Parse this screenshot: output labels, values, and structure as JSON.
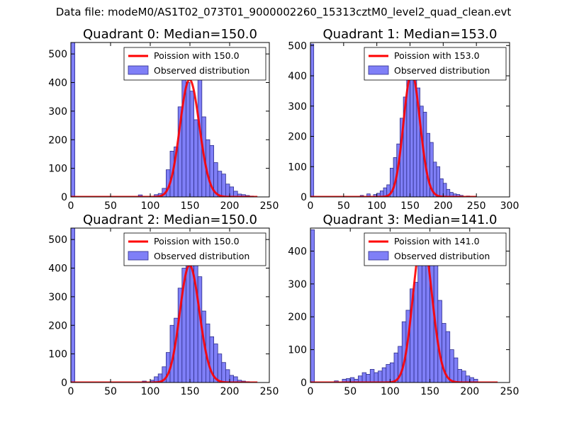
{
  "figure": {
    "suptitle": "Data file: modeM0/AS1T02_073T01_9000002260_15313cztM0_level2_quad_clean.evt"
  },
  "colors": {
    "hist_fill": "#7F7FF7",
    "hist_edge": "#2E2E8C",
    "poisson_line": "#FF0000",
    "background": "#ffffff"
  },
  "chart_data": [
    {
      "type": "histogram+line",
      "title": "Quadrant 0: Median=150.0",
      "xlim": [
        0,
        250
      ],
      "ylim": [
        0,
        540
      ],
      "xticks": [
        0,
        50,
        100,
        150,
        200,
        250
      ],
      "yticks": [
        0,
        100,
        200,
        300,
        400,
        500
      ],
      "bin_width": 5,
      "bins": [
        {
          "x": 0,
          "y": 540
        },
        {
          "x": 85,
          "y": 7
        },
        {
          "x": 105,
          "y": 8
        },
        {
          "x": 110,
          "y": 12
        },
        {
          "x": 115,
          "y": 30
        },
        {
          "x": 120,
          "y": 95
        },
        {
          "x": 125,
          "y": 160
        },
        {
          "x": 130,
          "y": 175
        },
        {
          "x": 135,
          "y": 315
        },
        {
          "x": 140,
          "y": 445
        },
        {
          "x": 145,
          "y": 400
        },
        {
          "x": 150,
          "y": 370
        },
        {
          "x": 155,
          "y": 270
        },
        {
          "x": 160,
          "y": 420
        },
        {
          "x": 165,
          "y": 280
        },
        {
          "x": 170,
          "y": 200
        },
        {
          "x": 175,
          "y": 180
        },
        {
          "x": 180,
          "y": 120
        },
        {
          "x": 185,
          "y": 90
        },
        {
          "x": 190,
          "y": 80
        },
        {
          "x": 195,
          "y": 45
        },
        {
          "x": 200,
          "y": 35
        },
        {
          "x": 205,
          "y": 20
        },
        {
          "x": 210,
          "y": 10
        },
        {
          "x": 215,
          "y": 8
        },
        {
          "x": 220,
          "y": 5
        },
        {
          "x": 225,
          "y": 3
        }
      ],
      "poisson": {
        "lambda": 150.0,
        "peak": 410,
        "x_max": 235
      },
      "legend": {
        "position": "top-right",
        "line_label": "Poission with 150.0",
        "hist_label": "Observed distribution"
      }
    },
    {
      "type": "histogram+line",
      "title": "Quadrant 1: Median=153.0",
      "xlim": [
        0,
        300
      ],
      "ylim": [
        0,
        510
      ],
      "xticks": [
        0,
        50,
        100,
        150,
        200,
        250,
        300
      ],
      "yticks": [
        0,
        100,
        200,
        300,
        400,
        500
      ],
      "bin_width": 5,
      "bins": [
        {
          "x": 0,
          "y": 505
        },
        {
          "x": 75,
          "y": 5
        },
        {
          "x": 85,
          "y": 10
        },
        {
          "x": 95,
          "y": 8
        },
        {
          "x": 100,
          "y": 12
        },
        {
          "x": 105,
          "y": 20
        },
        {
          "x": 110,
          "y": 30
        },
        {
          "x": 115,
          "y": 40
        },
        {
          "x": 120,
          "y": 95
        },
        {
          "x": 125,
          "y": 130
        },
        {
          "x": 130,
          "y": 175
        },
        {
          "x": 135,
          "y": 260
        },
        {
          "x": 140,
          "y": 330
        },
        {
          "x": 145,
          "y": 420
        },
        {
          "x": 150,
          "y": 445
        },
        {
          "x": 155,
          "y": 400
        },
        {
          "x": 160,
          "y": 360
        },
        {
          "x": 165,
          "y": 300
        },
        {
          "x": 170,
          "y": 280
        },
        {
          "x": 175,
          "y": 210
        },
        {
          "x": 180,
          "y": 180
        },
        {
          "x": 185,
          "y": 115
        },
        {
          "x": 190,
          "y": 100
        },
        {
          "x": 195,
          "y": 60
        },
        {
          "x": 200,
          "y": 45
        },
        {
          "x": 205,
          "y": 25
        },
        {
          "x": 210,
          "y": 15
        },
        {
          "x": 215,
          "y": 10
        },
        {
          "x": 220,
          "y": 8
        },
        {
          "x": 225,
          "y": 5
        },
        {
          "x": 235,
          "y": 3
        }
      ],
      "poisson": {
        "lambda": 153.0,
        "peak": 410,
        "x_max": 250
      },
      "legend": {
        "position": "top-right",
        "line_label": "Poission with 153.0",
        "hist_label": "Observed distribution"
      }
    },
    {
      "type": "histogram+line",
      "title": "Quadrant 2: Median=150.0",
      "xlim": [
        0,
        250
      ],
      "ylim": [
        0,
        540
      ],
      "xticks": [
        0,
        50,
        100,
        150,
        200,
        250
      ],
      "yticks": [
        0,
        100,
        200,
        300,
        400,
        500
      ],
      "bin_width": 5,
      "bins": [
        {
          "x": 0,
          "y": 540
        },
        {
          "x": 90,
          "y": 5
        },
        {
          "x": 100,
          "y": 8
        },
        {
          "x": 105,
          "y": 20
        },
        {
          "x": 110,
          "y": 30
        },
        {
          "x": 115,
          "y": 55
        },
        {
          "x": 120,
          "y": 105
        },
        {
          "x": 125,
          "y": 200
        },
        {
          "x": 130,
          "y": 225
        },
        {
          "x": 135,
          "y": 330
        },
        {
          "x": 140,
          "y": 400
        },
        {
          "x": 145,
          "y": 440
        },
        {
          "x": 150,
          "y": 470
        },
        {
          "x": 155,
          "y": 420
        },
        {
          "x": 160,
          "y": 370
        },
        {
          "x": 165,
          "y": 250
        },
        {
          "x": 170,
          "y": 205
        },
        {
          "x": 175,
          "y": 160
        },
        {
          "x": 180,
          "y": 135
        },
        {
          "x": 185,
          "y": 100
        },
        {
          "x": 190,
          "y": 70
        },
        {
          "x": 195,
          "y": 45
        },
        {
          "x": 200,
          "y": 25
        },
        {
          "x": 205,
          "y": 20
        },
        {
          "x": 210,
          "y": 8
        },
        {
          "x": 215,
          "y": 5
        },
        {
          "x": 220,
          "y": 3
        }
      ],
      "poisson": {
        "lambda": 150.0,
        "peak": 410,
        "x_max": 235
      },
      "legend": {
        "position": "top-right",
        "line_label": "Poission with 150.0",
        "hist_label": "Observed distribution"
      }
    },
    {
      "type": "histogram+line",
      "title": "Quadrant 3: Median=141.0",
      "xlim": [
        0,
        250
      ],
      "ylim": [
        0,
        470
      ],
      "xticks": [
        0,
        50,
        100,
        150,
        200,
        250
      ],
      "yticks": [
        0,
        100,
        200,
        300,
        400
      ],
      "bin_width": 5,
      "bins": [
        {
          "x": 0,
          "y": 465
        },
        {
          "x": 30,
          "y": 5
        },
        {
          "x": 40,
          "y": 10
        },
        {
          "x": 45,
          "y": 12
        },
        {
          "x": 50,
          "y": 15
        },
        {
          "x": 55,
          "y": 10
        },
        {
          "x": 60,
          "y": 20
        },
        {
          "x": 65,
          "y": 30
        },
        {
          "x": 70,
          "y": 25
        },
        {
          "x": 75,
          "y": 40
        },
        {
          "x": 80,
          "y": 30
        },
        {
          "x": 85,
          "y": 35
        },
        {
          "x": 90,
          "y": 45
        },
        {
          "x": 95,
          "y": 55
        },
        {
          "x": 100,
          "y": 60
        },
        {
          "x": 105,
          "y": 90
        },
        {
          "x": 110,
          "y": 110
        },
        {
          "x": 115,
          "y": 185
        },
        {
          "x": 120,
          "y": 220
        },
        {
          "x": 125,
          "y": 285
        },
        {
          "x": 130,
          "y": 305
        },
        {
          "x": 135,
          "y": 380
        },
        {
          "x": 140,
          "y": 410
        },
        {
          "x": 145,
          "y": 420
        },
        {
          "x": 150,
          "y": 390
        },
        {
          "x": 155,
          "y": 360
        },
        {
          "x": 160,
          "y": 250
        },
        {
          "x": 165,
          "y": 180
        },
        {
          "x": 170,
          "y": 155
        },
        {
          "x": 175,
          "y": 100
        },
        {
          "x": 180,
          "y": 75
        },
        {
          "x": 185,
          "y": 40
        },
        {
          "x": 190,
          "y": 35
        },
        {
          "x": 195,
          "y": 20
        },
        {
          "x": 200,
          "y": 15
        },
        {
          "x": 205,
          "y": 10
        }
      ],
      "poisson": {
        "lambda": 141.0,
        "peak": 440,
        "x_max": 235
      },
      "legend": {
        "position": "top-right",
        "line_label": "Poission with 141.0",
        "hist_label": "Observed distribution"
      }
    }
  ]
}
